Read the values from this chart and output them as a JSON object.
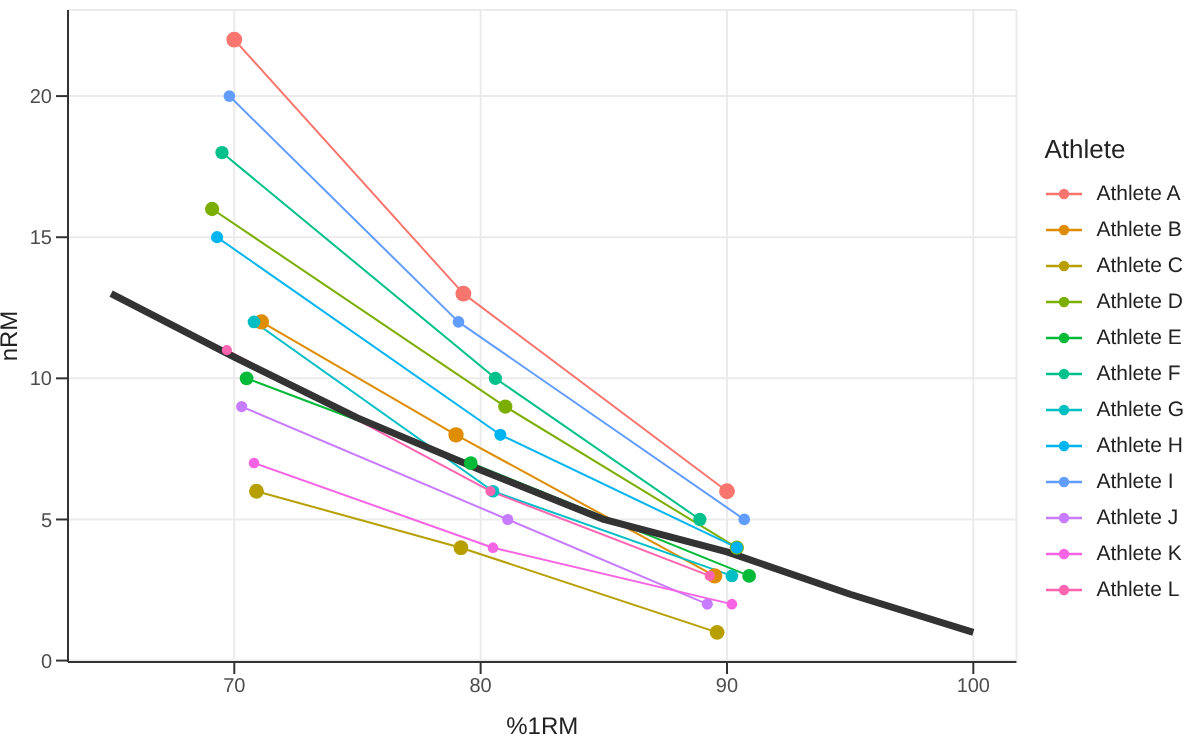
{
  "chart_data": {
    "type": "line",
    "xlabel": "%1RM",
    "ylabel": "nRM",
    "legend_title": "Athlete",
    "xlim": [
      63.25,
      101.75
    ],
    "xticks": [
      70,
      80,
      90,
      100
    ],
    "ylim": [
      -0.05,
      23.05
    ],
    "yticks": [
      0,
      5,
      10,
      15,
      20
    ],
    "grid": true,
    "legend": "right",
    "marker": "circle",
    "line_style": "solid",
    "series": [
      {
        "name": "Athlete A",
        "color": "#f8766d",
        "x": [
          70.0,
          79.3,
          90.0
        ],
        "values": [
          22,
          13,
          6
        ]
      },
      {
        "name": "Athlete B",
        "color": "#de8c00",
        "x": [
          71.1,
          79.0,
          89.5
        ],
        "values": [
          12,
          8,
          3
        ]
      },
      {
        "name": "Athlete C",
        "color": "#b79f00",
        "x": [
          70.9,
          79.2,
          89.6
        ],
        "values": [
          6,
          4,
          1
        ]
      },
      {
        "name": "Athlete D",
        "color": "#7cae00",
        "x": [
          69.1,
          81.0,
          90.4
        ],
        "values": [
          16,
          9,
          4
        ]
      },
      {
        "name": "Athlete E",
        "color": "#00ba38",
        "x": [
          70.5,
          79.6,
          90.9
        ],
        "values": [
          10,
          7,
          3
        ]
      },
      {
        "name": "Athlete F",
        "color": "#00c08b",
        "x": [
          69.5,
          80.6,
          88.9
        ],
        "values": [
          18,
          10,
          5
        ]
      },
      {
        "name": "Athlete G",
        "color": "#00bfc4",
        "x": [
          70.8,
          80.5,
          90.2
        ],
        "values": [
          12,
          6,
          3
        ]
      },
      {
        "name": "Athlete H",
        "color": "#00b4f0",
        "x": [
          69.3,
          80.8,
          90.4
        ],
        "values": [
          15,
          8,
          4
        ]
      },
      {
        "name": "Athlete I",
        "color": "#619cff",
        "x": [
          69.8,
          79.1,
          90.7
        ],
        "values": [
          20,
          12,
          5
        ]
      },
      {
        "name": "Athlete J",
        "color": "#c77cff",
        "x": [
          70.3,
          81.1,
          89.2
        ],
        "values": [
          9,
          5,
          2
        ]
      },
      {
        "name": "Athlete K",
        "color": "#f564e3",
        "x": [
          70.8,
          80.5,
          90.2
        ],
        "values": [
          7,
          4,
          2
        ]
      },
      {
        "name": "Athlete L",
        "color": "#ff64b0",
        "x": [
          69.7,
          80.4,
          89.3
        ],
        "values": [
          11,
          6,
          3
        ]
      },
      {
        "type": "line",
        "marker": "none",
        "color": "#333333",
        "x": [
          65,
          70,
          75,
          80,
          85,
          90,
          95,
          100
        ],
        "values": [
          13.0,
          10.75,
          8.6,
          6.75,
          5.0,
          3.85,
          2.35,
          1.0
        ]
      }
    ]
  }
}
